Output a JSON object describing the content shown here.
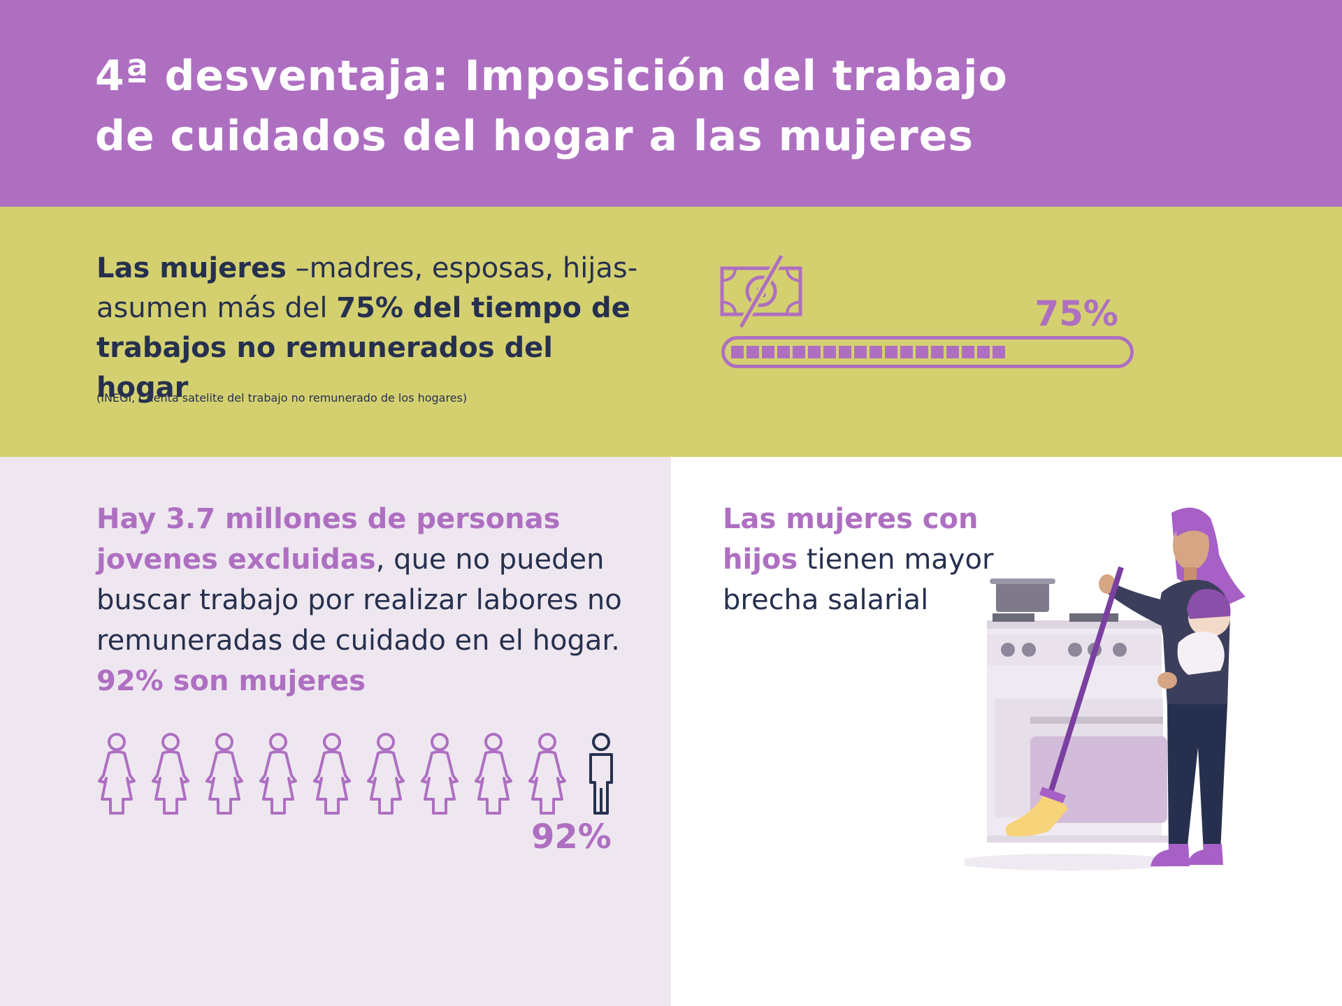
{
  "header": {
    "title_line1": "4ª desventaja: Imposición del trabajo",
    "title_line2": "de cuidados del hogar a las mujeres"
  },
  "unpaid_work": {
    "text_bold1": "Las mujeres",
    "text_normal1": " –madres, esposas, hijas- asumen más del ",
    "text_bold2": "75% del tiempo de trabajos no remunerados del hogar",
    "source": "(INEGI, Cuenta satelite del trabajo no remunerado de los hogares)",
    "percent_label": "75%",
    "percent_value": 75,
    "icon": "crossed-out-banknote-icon"
  },
  "youth": {
    "text_highlight": "Hay 3.7 millones de personas jovenes excluidas",
    "text_normal": ", que no pueden buscar trabajo por realizar labores no remuneradas de cuidado en el hogar.",
    "text_highlight2": "92% son mujeres",
    "percent_label": "92%",
    "women_icons": 9,
    "men_icons": 1
  },
  "mothers": {
    "text_highlight": "Las mujeres con hijos",
    "text_normal": " tienen mayor brecha salarial",
    "illustration": "woman-with-baby-sweeping-by-stove-illustration"
  },
  "colors": {
    "purple": "#ae6fc1",
    "olive": "#d4d070",
    "navy": "#26304e",
    "lavender_bg": "#eee7f0"
  }
}
